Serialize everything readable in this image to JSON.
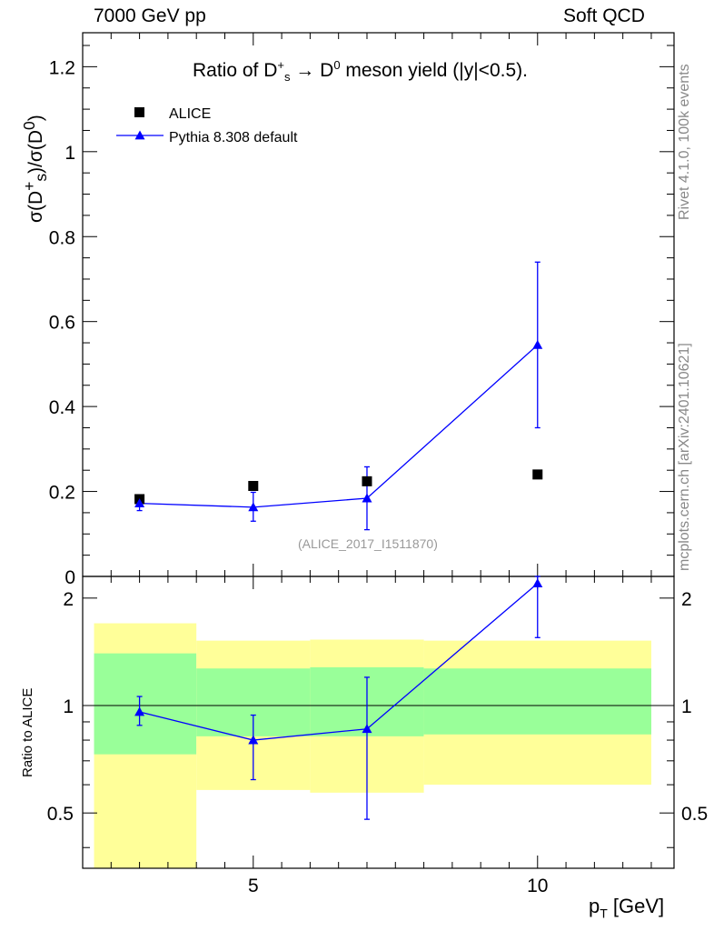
{
  "header": {
    "left": "7000 GeV pp",
    "right": "Soft QCD"
  },
  "side_labels": {
    "rivet": "Rivet 4.1.0,  100k events",
    "mcplots": "mcplots.cern.ch [arXiv:2401.10621]"
  },
  "reference_label": "(ALICE_2017_I1511870)",
  "colors": {
    "pythia": "#0000ff",
    "data": "#000000",
    "band_inner": "#99ff99",
    "band_outer": "#ffff99"
  },
  "chart_data": [
    {
      "type": "scatter",
      "title_prefix": "Ratio of D",
      "title_sup1": "+",
      "title_sub1": "s",
      "title_arrow": " → D",
      "title_sup2": "0",
      "title_suffix": " meson yield (|y|<0.5).",
      "ylabel_main": "σ(D",
      "ylabel_sup1": "+",
      "ylabel_sub1": "s",
      "ylabel_mid": ")/σ(D",
      "ylabel_sup2": "0",
      "ylabel_end": ")",
      "xlim": [
        2,
        12.4
      ],
      "ylim": [
        0,
        1.28
      ],
      "yticks": [
        0,
        0.2,
        0.4,
        0.6,
        0.8,
        1,
        1.2
      ],
      "ytick_labels": [
        "0",
        "0.2",
        "0.4",
        "0.6",
        "0.8",
        "1",
        "1.2"
      ],
      "legend": [
        "ALICE",
        "Pythia 8.308 default"
      ],
      "series": [
        {
          "name": "ALICE",
          "x": [
            3,
            5,
            7,
            10
          ],
          "y": [
            0.182,
            0.213,
            0.224,
            0.24
          ]
        },
        {
          "name": "Pythia 8.308 default",
          "x": [
            3,
            5,
            7,
            10
          ],
          "y": [
            0.172,
            0.163,
            0.184,
            0.545
          ],
          "err_low": [
            0.155,
            0.13,
            0.11,
            0.35
          ],
          "err_high": [
            0.19,
            0.198,
            0.258,
            0.74
          ]
        }
      ]
    },
    {
      "type": "scatter",
      "ylabel": "Ratio to ALICE",
      "xlabel_main": "p",
      "xlabel_sub": "T",
      "xlabel_unit": " [GeV]",
      "xlim": [
        2,
        12.4
      ],
      "ylim": [
        0.35,
        2.3
      ],
      "yticks": [
        0.5,
        1,
        2
      ],
      "ytick_labels": [
        "0.5",
        "1",
        "2"
      ],
      "xticks": [
        5,
        10
      ],
      "xtick_labels": [
        "5",
        "10"
      ],
      "bins": [
        {
          "x_low": 2.2,
          "x_high": 4.0,
          "inner_low": 0.73,
          "inner_high": 1.4,
          "outer_low": 0.35,
          "outer_high": 1.7
        },
        {
          "x_low": 4.0,
          "x_high": 6.0,
          "inner_low": 0.82,
          "inner_high": 1.27,
          "outer_low": 0.58,
          "outer_high": 1.52
        },
        {
          "x_low": 6.0,
          "x_high": 8.0,
          "inner_low": 0.82,
          "inner_high": 1.28,
          "outer_low": 0.57,
          "outer_high": 1.53
        },
        {
          "x_low": 8.0,
          "x_high": 12.0,
          "inner_low": 0.83,
          "inner_high": 1.27,
          "outer_low": 0.6,
          "outer_high": 1.52
        }
      ],
      "series": [
        {
          "name": "Pythia 8.308 default / ALICE",
          "x": [
            3,
            5,
            7,
            10
          ],
          "y": [
            0.96,
            0.8,
            0.86,
            2.2
          ],
          "err_low": [
            0.88,
            0.62,
            0.48,
            1.55
          ],
          "err_high": [
            1.06,
            0.94,
            1.2,
            2.3
          ]
        }
      ]
    }
  ]
}
